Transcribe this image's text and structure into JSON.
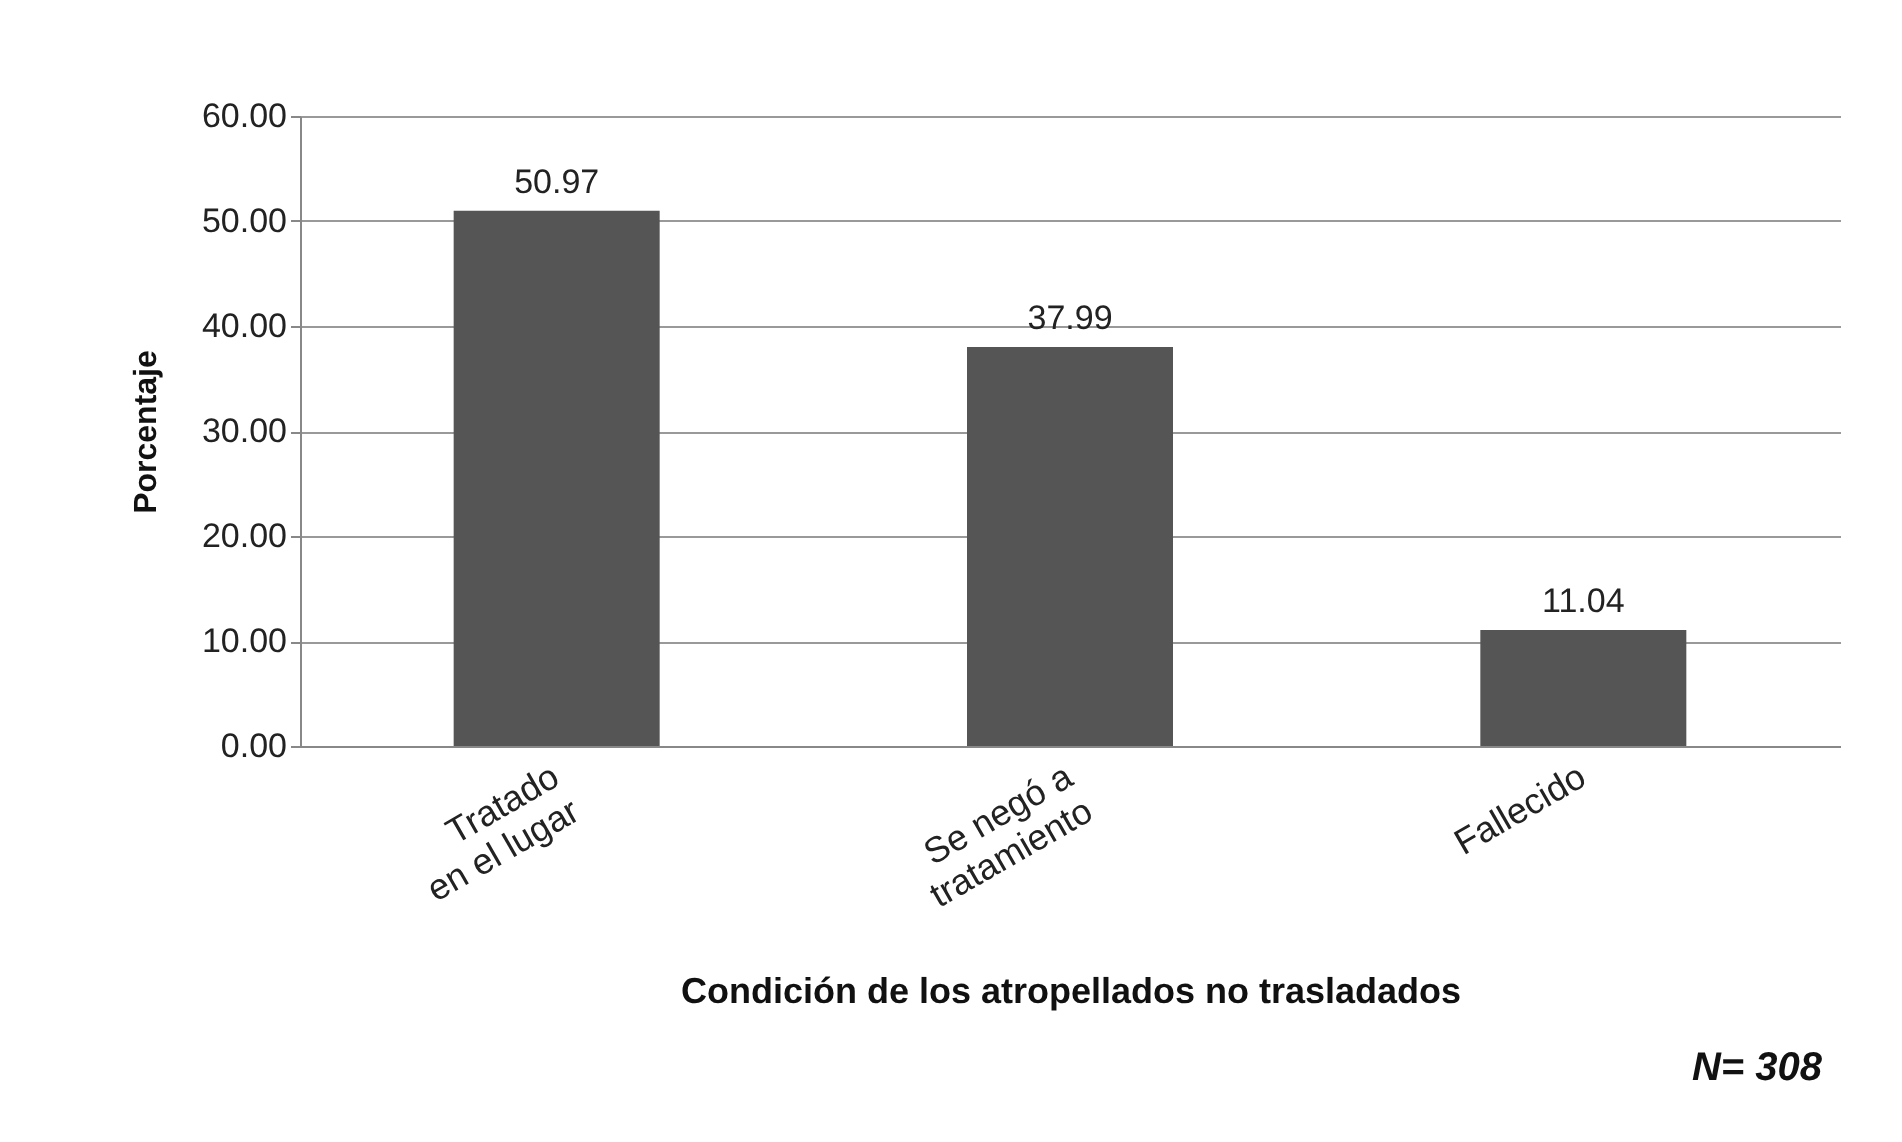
{
  "chart_data": {
    "type": "bar",
    "xlabel": "Condición de los atropellados no trasladados",
    "ylabel": "Porcentaje",
    "categories": [
      "Tratado\nen el lugar",
      "Se negó a\ntratamiento",
      "Fallecido"
    ],
    "values": [
      50.97,
      37.99,
      11.04
    ],
    "color": "#555555",
    "ylim": [
      0,
      60
    ],
    "yticks": [
      {
        "value": 0,
        "label": "0.00"
      },
      {
        "value": 10,
        "label": "10.00"
      },
      {
        "value": 20,
        "label": "20.00"
      },
      {
        "value": 30,
        "label": "30.00"
      },
      {
        "value": 40,
        "label": "40.00"
      },
      {
        "value": 50,
        "label": "50.00"
      },
      {
        "value": 60,
        "label": "60.00"
      }
    ],
    "grid": "y",
    "data_labels": true,
    "annotations": [
      "N= 308"
    ]
  }
}
